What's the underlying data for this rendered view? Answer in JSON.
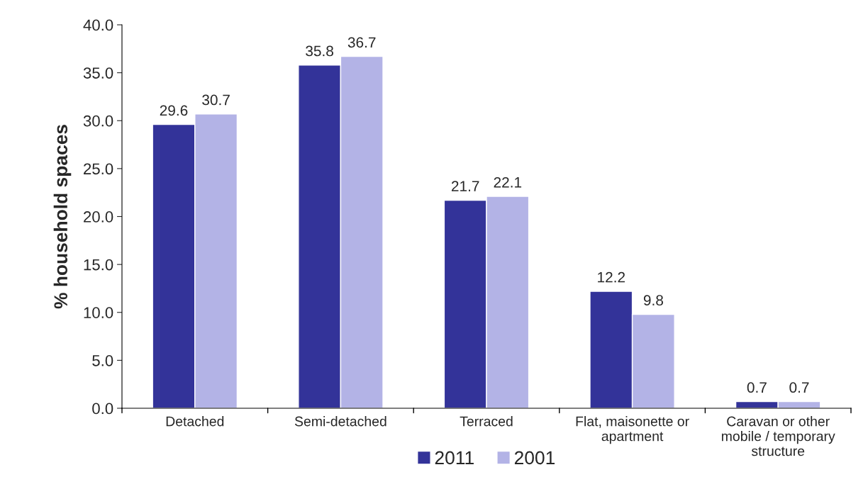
{
  "chart_data": {
    "type": "bar",
    "ylabel": "% household spaces",
    "categories": [
      "Detached",
      "Semi-detached",
      "Terraced",
      "Flat, maisonette or\napartment",
      "Caravan or other\nmobile / temporary\nstructure"
    ],
    "series": [
      {
        "name": "2011",
        "color": "#333399",
        "values": [
          29.6,
          35.8,
          21.7,
          12.2,
          0.7
        ]
      },
      {
        "name": "2001",
        "color": "#b3b3e6",
        "values": [
          30.7,
          36.7,
          22.1,
          9.8,
          0.7
        ]
      }
    ],
    "ylim": [
      0,
      40
    ],
    "yticks": [
      {
        "value": 0,
        "label": "0.0"
      },
      {
        "value": 5,
        "label": "5.0"
      },
      {
        "value": 10,
        "label": "10.0"
      },
      {
        "value": 15,
        "label": "15.0"
      },
      {
        "value": 20,
        "label": "20.0"
      },
      {
        "value": 25,
        "label": "25.0"
      },
      {
        "value": 30,
        "label": "30.0"
      },
      {
        "value": 35,
        "label": "35.0"
      },
      {
        "value": 40,
        "label": "40.0"
      }
    ],
    "data_labels": true,
    "legend": "bottom",
    "grid": false
  }
}
